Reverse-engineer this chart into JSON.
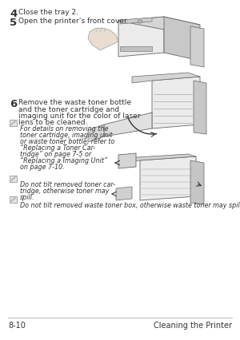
{
  "page_bg": "#ffffff",
  "outer_bg": "#f0f0f0",
  "text_color": "#333333",
  "line_color": "#aaaaaa",
  "step4_num": "4",
  "step4_text": "Close the tray 2.",
  "step5_num": "5",
  "step5_text": "Open the printer’s front cover.",
  "step6_num": "6",
  "step6_text_line1": "Remove the waste toner bottle",
  "step6_text_line2": "and the toner cartridge and",
  "step6_text_line3": "imaging unit for the color of laser",
  "step6_text_line4": "lens to be cleaned.",
  "note1_line1": "For details on removing the",
  "note1_line2": "toner cartridge, imaging unit",
  "note1_line3": "or waste toner bottle, refer to",
  "note1_line4": "“Replacing a Toner Car-",
  "note1_line5": "tridge” on page 7-5 or",
  "note1_line6": "“Replacing a Imaging Unit”",
  "note1_line7": "on page 7-10.",
  "note2_line1": "Do not tilt removed toner car-",
  "note2_line2": "tridge, otherwise toner may",
  "note2_line3": "spill.",
  "note3_text": "Do not tilt removed waste toner box, otherwise waste toner may spill.",
  "footer_left": "8-10",
  "footer_right": "Cleaning the Printer",
  "illus_color": "#d8d8d8",
  "illus_edge": "#666666",
  "illus_dark": "#aaaaaa"
}
